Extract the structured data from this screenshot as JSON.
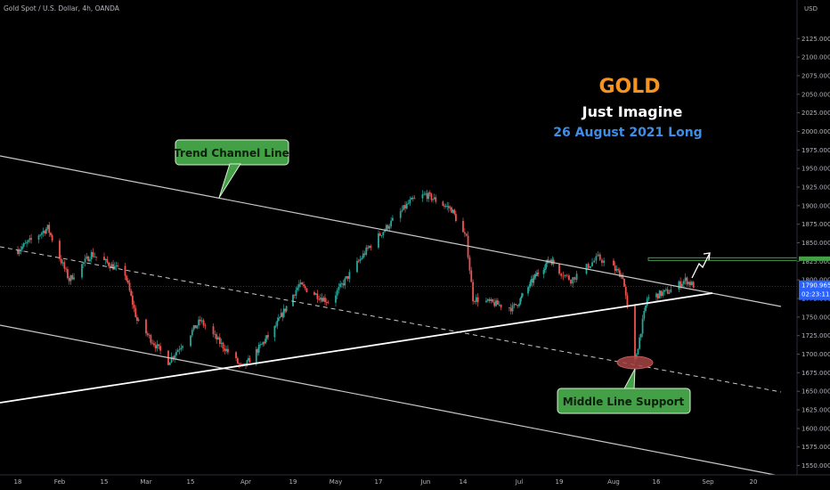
{
  "header": {
    "symbol_text": "Gold Spot / U.S. Dollar, 4h, OANDA"
  },
  "overlay": {
    "title": "GOLD",
    "subtitle": "Just Imagine",
    "date_line": "26 August 2021 Long",
    "title_color": "#f7931e",
    "subtitle_color": "#ffffff",
    "date_color": "#3d8ee8"
  },
  "callouts": {
    "trend": "Trend Channel Line",
    "support": "Middle Line Support",
    "color": "#43a047"
  },
  "chart_data": {
    "type": "candlestick",
    "y_axis": {
      "currency": "USD",
      "range": [
        1537.5,
        2162.5
      ],
      "ticks": [
        2125,
        2100,
        2075,
        2050,
        2025,
        2000,
        1975,
        1950,
        1925,
        1900,
        1875,
        1850,
        1825,
        1800,
        1775,
        1750,
        1725,
        1700,
        1675,
        1650,
        1625,
        1600,
        1575,
        1550
      ],
      "tick_labels": [
        "2125.000",
        "2100.000",
        "2075.000",
        "2050.000",
        "2025.000",
        "2000.000",
        "1975.000",
        "1950.000",
        "1925.000",
        "1900.000",
        "1875.000",
        "1850.000",
        "1825.000",
        "1800.000",
        "1775.000",
        "1750.000",
        "1725.000",
        "1700.000",
        "1675.000",
        "1650.000",
        "1625.000",
        "1600.000",
        "1575.000",
        "1550.000"
      ]
    },
    "x_axis": {
      "ticks": [
        "18",
        "Feb",
        "15",
        "Mar",
        "15",
        "Apr",
        "19",
        "May",
        "17",
        "Jun",
        "14",
        "Jul",
        "19",
        "Aug",
        "16",
        "Sep",
        "20"
      ]
    },
    "current_price": {
      "value": 1790.965,
      "label": "1790.965",
      "countdown": "02:23:11",
      "color": "#2962ff"
    },
    "resistance_level": {
      "value": 1828,
      "color": "#43a047"
    },
    "up_color": "#26a69a",
    "down_color": "#ef5350",
    "anchors": [
      [
        "2021-01-18",
        1840
      ],
      [
        "2021-01-28",
        1870
      ],
      [
        "2021-02-04",
        1800
      ],
      [
        "2021-02-11",
        1835
      ],
      [
        "2021-02-22",
        1808
      ],
      [
        "2021-02-26",
        1745
      ],
      [
        "2021-03-08",
        1690
      ],
      [
        "2021-03-18",
        1745
      ],
      [
        "2021-03-31",
        1681
      ],
      [
        "2021-04-12",
        1735
      ],
      [
        "2021-04-21",
        1793
      ],
      [
        "2021-05-01",
        1770
      ],
      [
        "2021-05-14",
        1845
      ],
      [
        "2021-05-27",
        1905
      ],
      [
        "2021-06-01",
        1915
      ],
      [
        "2021-06-10",
        1895
      ],
      [
        "2021-06-15",
        1855
      ],
      [
        "2021-06-17",
        1775
      ],
      [
        "2021-06-29",
        1762
      ],
      [
        "2021-07-09",
        1808
      ],
      [
        "2021-07-15",
        1828
      ],
      [
        "2021-07-22",
        1800
      ],
      [
        "2021-07-29",
        1830
      ],
      [
        "2021-08-05",
        1805
      ],
      [
        "2021-08-09",
        1690
      ],
      [
        "2021-08-13",
        1775
      ],
      [
        "2021-08-20",
        1785
      ],
      [
        "2021-08-25",
        1800
      ],
      [
        "2021-08-28",
        1791
      ]
    ]
  }
}
